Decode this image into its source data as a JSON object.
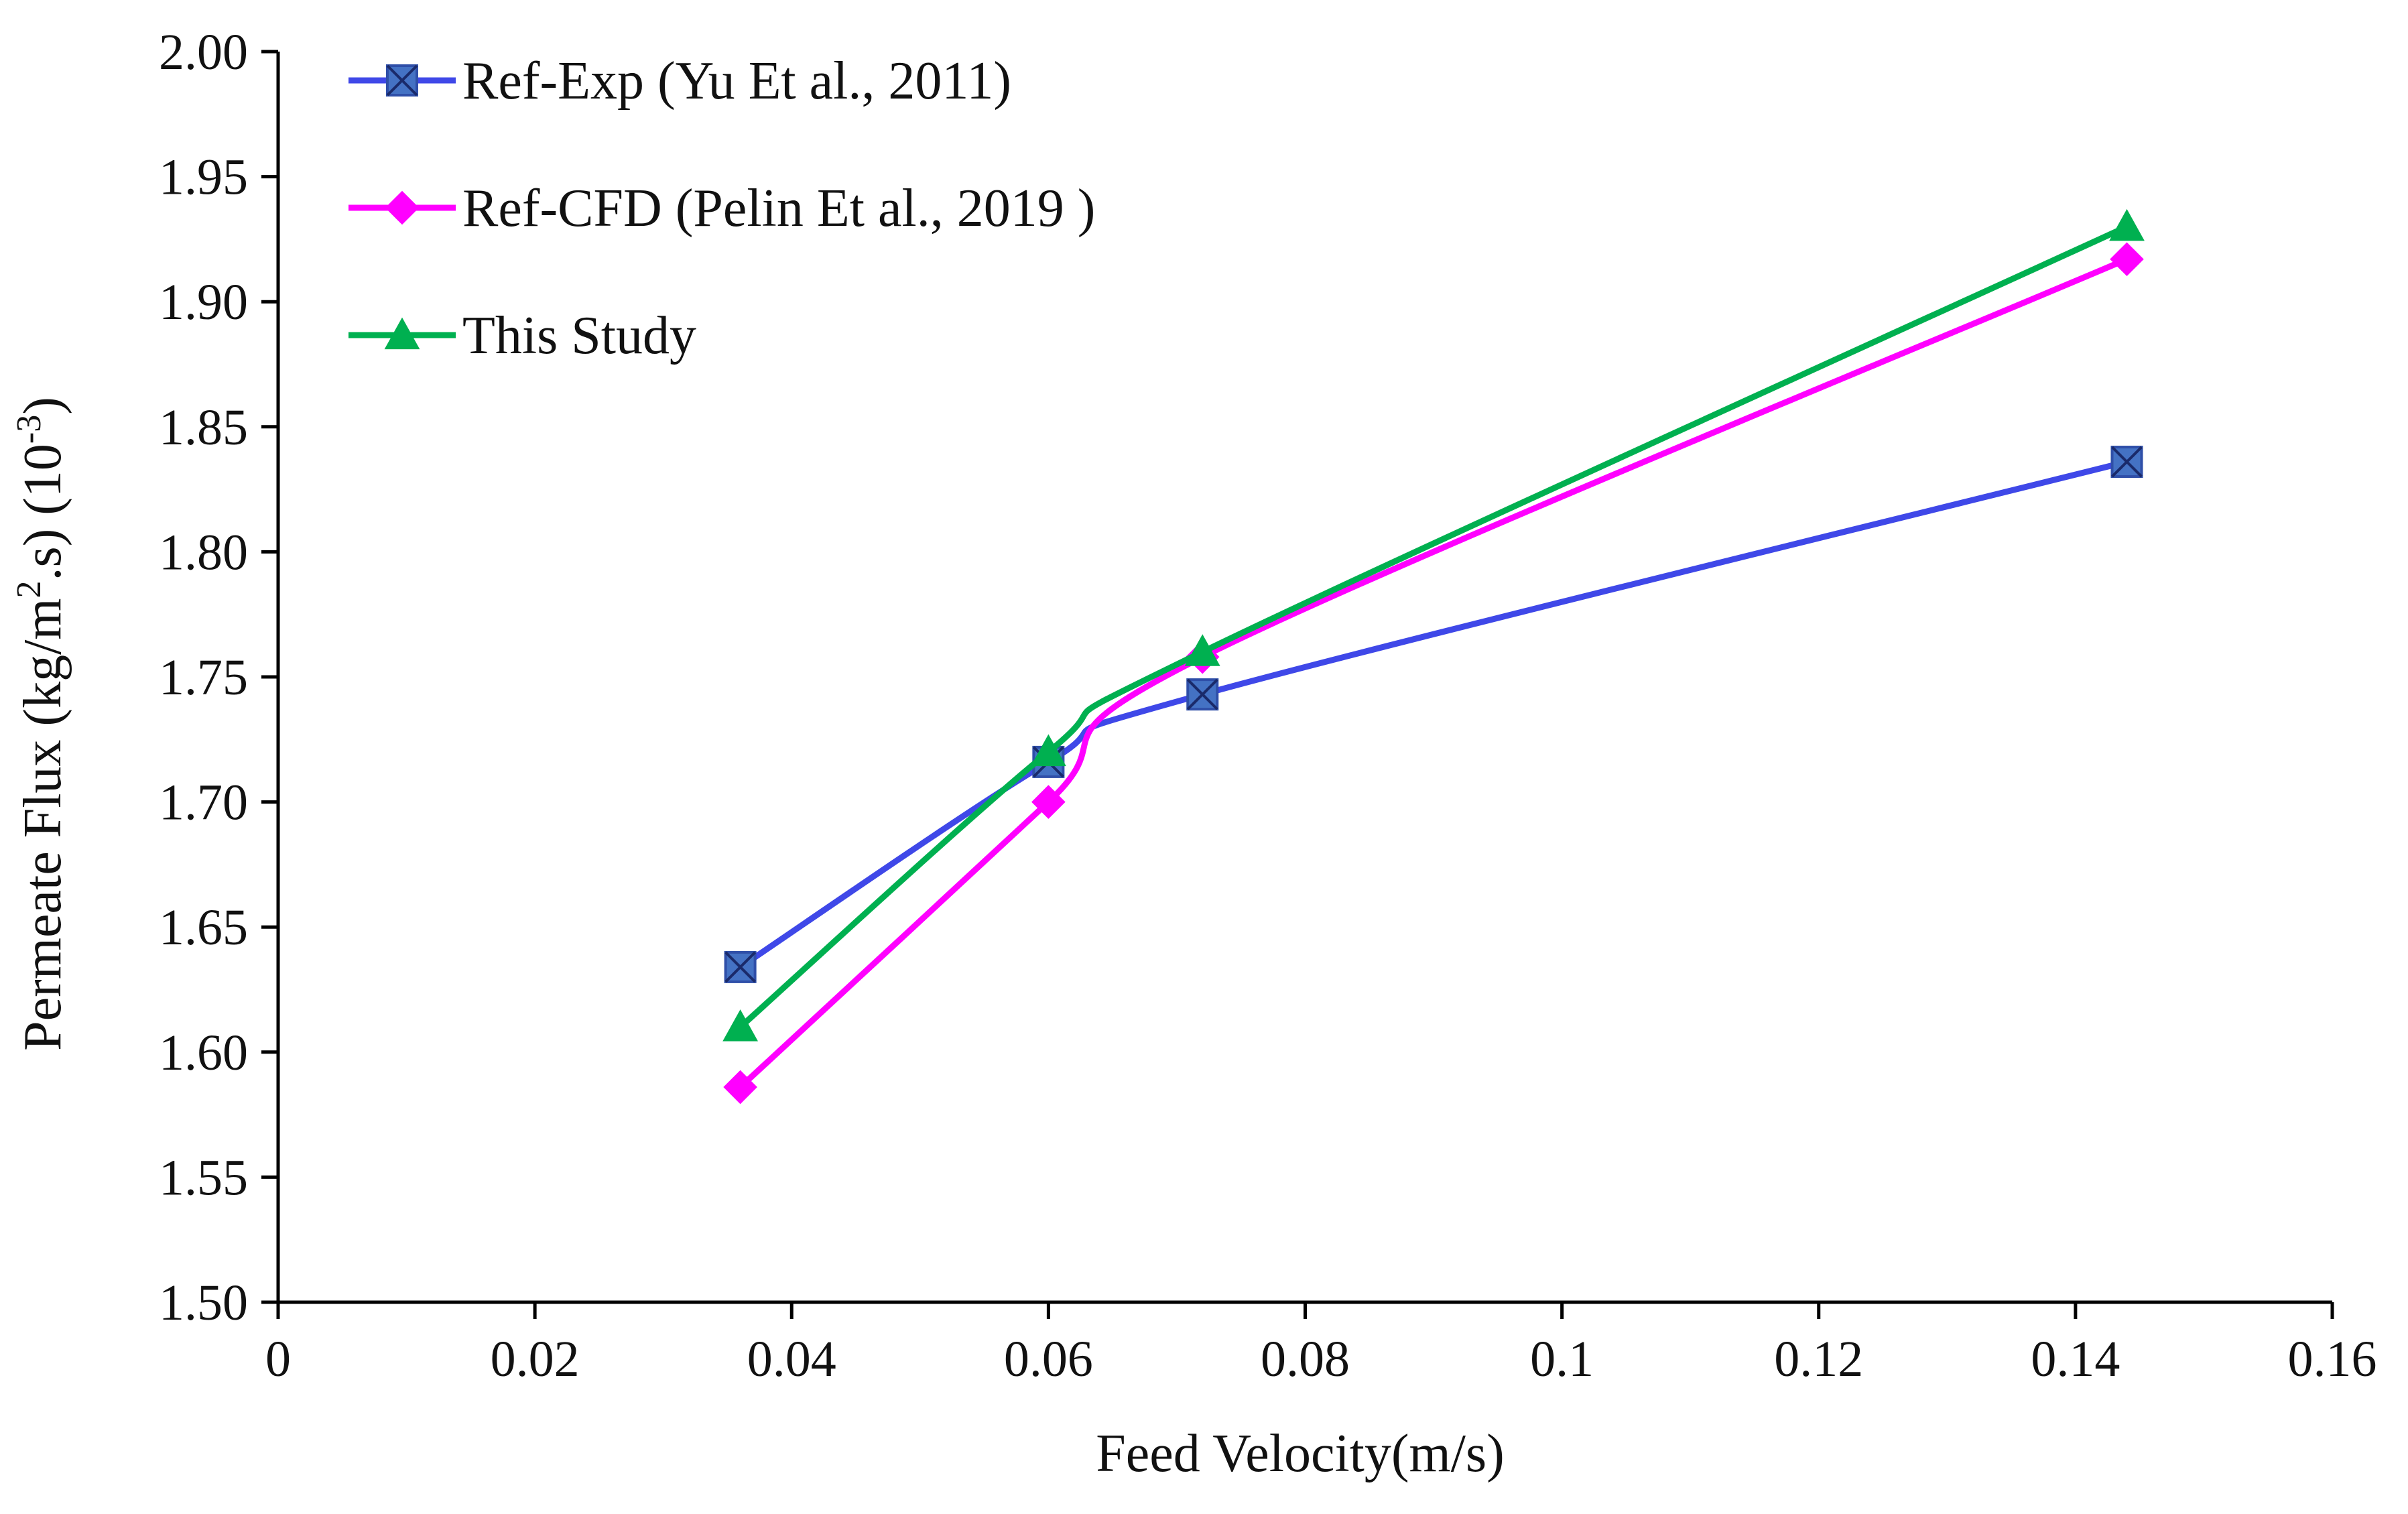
{
  "chart_data": {
    "type": "line",
    "title": "",
    "xlabel": "Feed Velocity(m/s)",
    "ylabel": {
      "prefix": "Permeate Flux (kg/m",
      "sup1": "2",
      "middle": ".s) (10",
      "sup2": "-3",
      "suffix": ")"
    },
    "xlim": [
      0,
      0.16
    ],
    "ylim": [
      1.5,
      2.0
    ],
    "x_ticks": [
      0,
      0.02,
      0.04,
      0.06,
      0.08,
      0.1,
      0.12,
      0.14,
      0.16
    ],
    "x_tick_labels": [
      "0",
      "0.02",
      "0.04",
      "0.06",
      "0.08",
      "0.1",
      "0.12",
      "0.14",
      "0.16"
    ],
    "y_ticks": [
      1.5,
      1.55,
      1.6,
      1.65,
      1.7,
      1.75,
      1.8,
      1.85,
      1.9,
      1.95,
      2.0
    ],
    "y_tick_labels": [
      "1.50",
      "1.55",
      "1.60",
      "1.65",
      "1.70",
      "1.75",
      "1.80",
      "1.85",
      "1.90",
      "1.95",
      "2.00"
    ],
    "grid": false,
    "legend_position": "top-left",
    "series": [
      {
        "name": "Ref-Exp (Yu Et al., 2011)",
        "color": "#3f48e8",
        "marker": "square-x",
        "marker_color": "#4472c4",
        "x": [
          0.036,
          0.06,
          0.072,
          0.144
        ],
        "y": [
          1.634,
          1.716,
          1.743,
          1.836
        ]
      },
      {
        "name": "Ref-CFD (Pelin Et al., 2019 )",
        "color": "#ff00ff",
        "marker": "diamond",
        "marker_color": "#ff00ff",
        "x": [
          0.036,
          0.06,
          0.072,
          0.144
        ],
        "y": [
          1.586,
          1.7,
          1.758,
          1.917
        ]
      },
      {
        "name": "This Study",
        "color": "#00b050",
        "marker": "triangle",
        "marker_color": "#00b050",
        "x": [
          0.036,
          0.06,
          0.072,
          0.144
        ],
        "y": [
          1.61,
          1.72,
          1.76,
          1.93
        ]
      }
    ]
  }
}
